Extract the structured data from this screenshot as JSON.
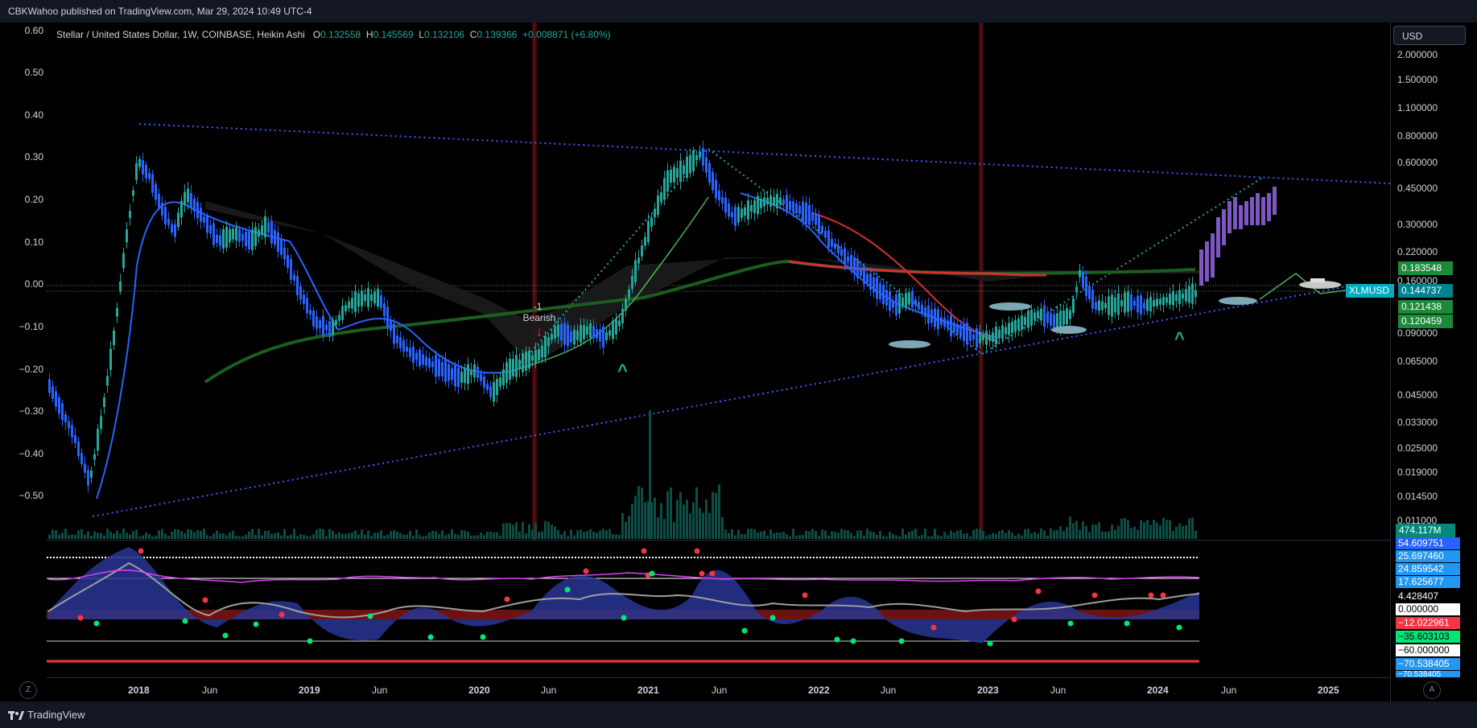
{
  "header": {
    "publisher_text": "CBKWahoo published on TradingView.com, Mar 29, 2024 10:49 UTC-4"
  },
  "legend": {
    "symbol": "Stellar / United States Dollar, 1W, COINBASE, Heikin Ashi",
    "o_label": "O",
    "o_value": "0.132558",
    "h_label": "H",
    "h_value": "0.145569",
    "l_label": "L",
    "l_value": "0.132106",
    "c_label": "C",
    "c_value": "0.139366",
    "change": "+0.008871 (+6.80%)"
  },
  "currency_button": "USD",
  "left_axis_ticks": [
    "0.60",
    "0.50",
    "0.40",
    "0.30",
    "0.20",
    "0.10",
    "0.00",
    "−0.10",
    "−0.20",
    "−0.30",
    "−0.40",
    "−0.50"
  ],
  "right_axis_ticks": [
    "2.000000",
    "1.500000",
    "1.100000",
    "0.800000",
    "0.600000",
    "0.450000",
    "0.300000",
    "0.220000",
    "0.160000",
    "0.090000",
    "0.065000",
    "0.045000",
    "0.033000",
    "0.025000",
    "0.019000",
    "0.014500",
    "0.011000"
  ],
  "price_badges": {
    "ma1": "0.183548",
    "last": "0.144737",
    "symbol_tag": "XLMUSD",
    "ma2": "0.121438",
    "ma3": "0.120459",
    "volume": "474.117M"
  },
  "oscillator_badges": [
    "54.609751",
    "25.697460",
    "24.859542",
    "17.625677",
    "4.428407",
    "0.000000",
    "−12.022961",
    "−35.603103",
    "−60.000000",
    "−70.538405",
    "−70.538405"
  ],
  "annotations": {
    "signal_value": "-1",
    "signal_text": "Bearish",
    "signal_arrow": "↓",
    "caret": "^"
  },
  "time_axis": [
    "2018",
    "Jun",
    "2019",
    "Jun",
    "2020",
    "Jun",
    "2021",
    "Jun",
    "2022",
    "Jun",
    "2023",
    "Jun",
    "2024",
    "Jun",
    "2025"
  ],
  "footer": {
    "brand": "TradingView",
    "zoom_btn": "Z",
    "auto_btn": "A"
  },
  "colors": {
    "up": "#26a69a",
    "down": "#2962ff",
    "purple": "#7e57c2",
    "ma_green": "#1b5e20",
    "ma_red": "#d32f2f",
    "trend_blue": "#3d5afe",
    "badge_green": "#089981",
    "badge_teal": "#00897b",
    "osc_blue": "#2962ff",
    "osc_red": "#f23645"
  },
  "icons": [
    "shark-icon",
    "boat-icon",
    "tradingview-logo-icon"
  ]
}
